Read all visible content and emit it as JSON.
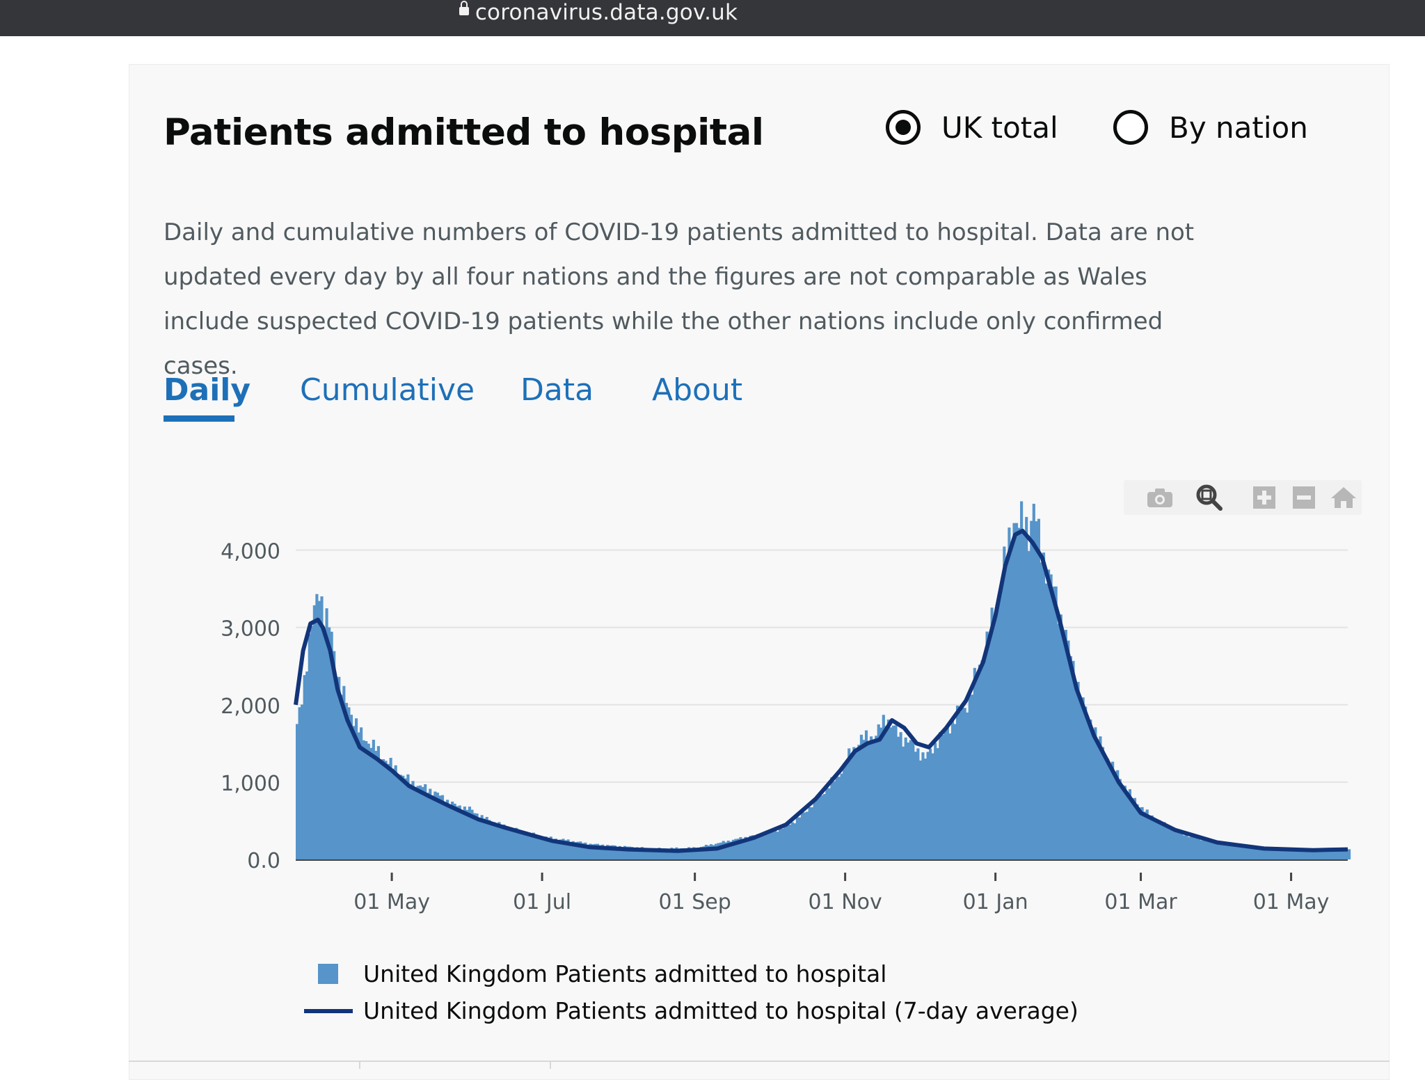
{
  "browser": {
    "url": "coronavirus.data.gov.uk"
  },
  "card": {
    "title": "Patients admitted to hospital",
    "radio_uk_total": "UK total",
    "radio_by_nation": "By nation",
    "selected_radio": "UK total",
    "description": "Daily and cumulative numbers of COVID-19 patients admitted to hospital. Data are not updated every day by all four nations and the figures are not comparable as Wales include suspected COVID-19 patients while the other nations include only confirmed cases.",
    "tabs": [
      "Daily",
      "Cumulative",
      "Data",
      "About"
    ],
    "active_tab": "Daily"
  },
  "modebar": {
    "icons": [
      "camera-icon",
      "zoom-icon",
      "zoom-in-icon",
      "zoom-out-icon",
      "home-icon"
    ]
  },
  "colors": {
    "bar": "#5694ca",
    "line": "#12357a",
    "tab": "#1d70b8"
  },
  "chart_data": {
    "type": "bar",
    "x_start": "2020-03-23",
    "x_end": "2021-05-24",
    "ylim": [
      0,
      4500
    ],
    "y_ticks": [
      0,
      1000,
      2000,
      3000,
      4000
    ],
    "y_tick_labels": [
      "0.0",
      "1,000",
      "2,000",
      "3,000",
      "4,000"
    ],
    "x_tick_labels": [
      "01 May",
      "01 Jul",
      "01 Sep",
      "01 Nov",
      "01 Jan",
      "01 Mar",
      "01 May"
    ],
    "x_tick_dates": [
      "2020-05-01",
      "2020-07-01",
      "2020-09-01",
      "2020-11-01",
      "2021-01-01",
      "2021-03-01",
      "2021-05-01"
    ],
    "grid": true,
    "legend_position": "bottom",
    "series": [
      {
        "name": "United Kingdom Patients admitted to hospital",
        "kind": "bar",
        "color": "#5694ca",
        "x": [
          "2020-03-23",
          "2020-03-25",
          "2020-03-27",
          "2020-03-30",
          "2020-04-01",
          "2020-04-03",
          "2020-04-06",
          "2020-04-09",
          "2020-04-11",
          "2020-04-14",
          "2020-04-18",
          "2020-04-22",
          "2020-04-26",
          "2020-05-01",
          "2020-05-06",
          "2020-05-11",
          "2020-05-16",
          "2020-05-21",
          "2020-05-26",
          "2020-06-01",
          "2020-06-06",
          "2020-06-11",
          "2020-06-16",
          "2020-06-21",
          "2020-06-26",
          "2020-07-01",
          "2020-07-10",
          "2020-07-20",
          "2020-08-01",
          "2020-08-15",
          "2020-09-01",
          "2020-09-10",
          "2020-09-20",
          "2020-09-30",
          "2020-10-07",
          "2020-10-12",
          "2020-10-16",
          "2020-10-20",
          "2020-10-25",
          "2020-10-30",
          "2020-11-03",
          "2020-11-07",
          "2020-11-10",
          "2020-11-13",
          "2020-11-17",
          "2020-11-21",
          "2020-11-25",
          "2020-11-29",
          "2020-12-03",
          "2020-12-06",
          "2020-12-10",
          "2020-12-14",
          "2020-12-18",
          "2020-12-21",
          "2020-12-24",
          "2020-12-28",
          "2020-12-31",
          "2021-01-03",
          "2021-01-06",
          "2021-01-08",
          "2021-01-10",
          "2021-01-12",
          "2021-01-14",
          "2021-01-16",
          "2021-01-18",
          "2021-01-20",
          "2021-01-24",
          "2021-01-28",
          "2021-02-01",
          "2021-02-05",
          "2021-02-10",
          "2021-02-15",
          "2021-02-20",
          "2021-02-25",
          "2021-03-03",
          "2021-03-10",
          "2021-03-20",
          "2021-04-01",
          "2021-04-15",
          "2021-05-01",
          "2021-05-15",
          "2021-05-24"
        ],
        "values": [
          1700,
          2100,
          2600,
          3200,
          3550,
          3150,
          2900,
          2300,
          2100,
          1900,
          1600,
          1500,
          1350,
          1200,
          1050,
          950,
          900,
          800,
          700,
          650,
          550,
          480,
          420,
          370,
          330,
          290,
          250,
          200,
          170,
          140,
          150,
          210,
          280,
          340,
          420,
          520,
          640,
          780,
          950,
          1150,
          1400,
          1550,
          1580,
          1600,
          1850,
          1650,
          1550,
          1450,
          1300,
          1450,
          1600,
          1780,
          1950,
          2050,
          2450,
          2800,
          3200,
          3650,
          4100,
          4420,
          4320,
          4350,
          4250,
          4550,
          4150,
          3900,
          3500,
          3000,
          2500,
          2000,
          1650,
          1300,
          1050,
          800,
          600,
          450,
          300,
          220,
          170,
          120,
          110,
          130
        ]
      },
      {
        "name": "United Kingdom Patients admitted to hospital (7-day average)",
        "kind": "line",
        "color": "#12357a",
        "x": [
          "2020-03-23",
          "2020-03-26",
          "2020-03-29",
          "2020-04-01",
          "2020-04-03",
          "2020-04-06",
          "2020-04-09",
          "2020-04-13",
          "2020-04-18",
          "2020-04-25",
          "2020-05-01",
          "2020-05-08",
          "2020-05-16",
          "2020-05-25",
          "2020-06-05",
          "2020-06-15",
          "2020-06-25",
          "2020-07-05",
          "2020-07-20",
          "2020-08-05",
          "2020-08-25",
          "2020-09-10",
          "2020-09-25",
          "2020-10-08",
          "2020-10-20",
          "2020-10-30",
          "2020-11-05",
          "2020-11-10",
          "2020-11-15",
          "2020-11-20",
          "2020-11-25",
          "2020-11-30",
          "2020-12-05",
          "2020-12-12",
          "2020-12-20",
          "2020-12-27",
          "2021-01-01",
          "2021-01-05",
          "2021-01-09",
          "2021-01-12",
          "2021-01-16",
          "2021-01-20",
          "2021-01-27",
          "2021-02-03",
          "2021-02-10",
          "2021-02-20",
          "2021-03-01",
          "2021-03-15",
          "2021-04-01",
          "2021-04-20",
          "2021-05-10",
          "2021-05-24"
        ],
        "values": [
          2000,
          2700,
          3050,
          3100,
          3000,
          2700,
          2200,
          1800,
          1450,
          1300,
          1150,
          950,
          820,
          680,
          520,
          420,
          330,
          240,
          160,
          130,
          110,
          140,
          280,
          450,
          780,
          1150,
          1400,
          1500,
          1550,
          1800,
          1700,
          1500,
          1450,
          1700,
          2050,
          2550,
          3150,
          3800,
          4200,
          4250,
          4100,
          3900,
          3100,
          2200,
          1600,
          1000,
          600,
          380,
          220,
          140,
          120,
          130
        ]
      }
    ]
  }
}
